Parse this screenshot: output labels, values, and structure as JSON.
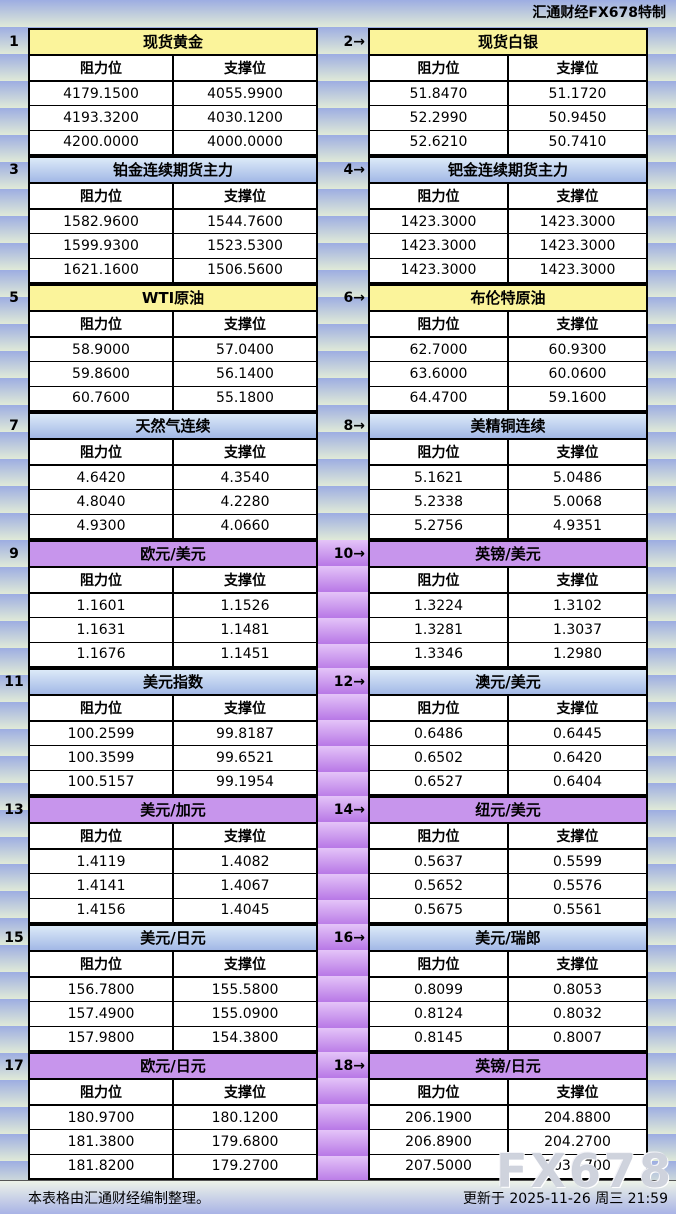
{
  "header": {
    "credit": "汇通财经FX678特制"
  },
  "table": {
    "labels": {
      "resistance": "阻力位",
      "support": "支撑位"
    },
    "section_rows": [
      {
        "theme": "yellow",
        "mid_theme": "plain",
        "left": {
          "num": "1",
          "title": "现货黄金",
          "rows": [
            [
              "4179.1500",
              "4055.9900"
            ],
            [
              "4193.3200",
              "4030.1200"
            ],
            [
              "4200.0000",
              "4000.0000"
            ]
          ]
        },
        "right": {
          "num": "2→",
          "title": "现货白银",
          "rows": [
            [
              "51.8470",
              "51.1720"
            ],
            [
              "52.2990",
              "50.9450"
            ],
            [
              "52.6210",
              "50.7410"
            ]
          ]
        }
      },
      {
        "theme": "blue",
        "mid_theme": "plain",
        "left": {
          "num": "3",
          "title": "铂金连续期货主力",
          "rows": [
            [
              "1582.9600",
              "1544.7600"
            ],
            [
              "1599.9300",
              "1523.5300"
            ],
            [
              "1621.1600",
              "1506.5600"
            ]
          ]
        },
        "right": {
          "num": "4→",
          "title": "钯金连续期货主力",
          "rows": [
            [
              "1423.3000",
              "1423.3000"
            ],
            [
              "1423.3000",
              "1423.3000"
            ],
            [
              "1423.3000",
              "1423.3000"
            ]
          ]
        }
      },
      {
        "theme": "yellow",
        "mid_theme": "plain",
        "left": {
          "num": "5",
          "title": "WTI原油",
          "rows": [
            [
              "58.9000",
              "57.0400"
            ],
            [
              "59.8600",
              "56.1400"
            ],
            [
              "60.7600",
              "55.1800"
            ]
          ]
        },
        "right": {
          "num": "6→",
          "title": "布伦特原油",
          "rows": [
            [
              "62.7000",
              "60.9300"
            ],
            [
              "63.6000",
              "60.0600"
            ],
            [
              "64.4700",
              "59.1600"
            ]
          ]
        }
      },
      {
        "theme": "blue",
        "mid_theme": "plain",
        "left": {
          "num": "7",
          "title": "天然气连续",
          "rows": [
            [
              "4.6420",
              "4.3540"
            ],
            [
              "4.8040",
              "4.2280"
            ],
            [
              "4.9300",
              "4.0660"
            ]
          ]
        },
        "right": {
          "num": "8→",
          "title": "美精铜连续",
          "rows": [
            [
              "5.1621",
              "5.0486"
            ],
            [
              "5.2338",
              "5.0068"
            ],
            [
              "5.2756",
              "4.9351"
            ]
          ]
        }
      },
      {
        "theme": "purple",
        "mid_theme": "purple",
        "left": {
          "num": "9",
          "title": "欧元/美元",
          "rows": [
            [
              "1.1601",
              "1.1526"
            ],
            [
              "1.1631",
              "1.1481"
            ],
            [
              "1.1676",
              "1.1451"
            ]
          ]
        },
        "right": {
          "num": "10→",
          "title": "英镑/美元",
          "rows": [
            [
              "1.3224",
              "1.3102"
            ],
            [
              "1.3281",
              "1.3037"
            ],
            [
              "1.3346",
              "1.2980"
            ]
          ]
        }
      },
      {
        "theme": "blue",
        "mid_theme": "purple",
        "left": {
          "num": "11",
          "title": "美元指数",
          "rows": [
            [
              "100.2599",
              "99.8187"
            ],
            [
              "100.3599",
              "99.6521"
            ],
            [
              "100.5157",
              "99.1954"
            ]
          ]
        },
        "right": {
          "num": "12→",
          "title": "澳元/美元",
          "rows": [
            [
              "0.6486",
              "0.6445"
            ],
            [
              "0.6502",
              "0.6420"
            ],
            [
              "0.6527",
              "0.6404"
            ]
          ]
        }
      },
      {
        "theme": "purple",
        "mid_theme": "purple",
        "left": {
          "num": "13",
          "title": "美元/加元",
          "rows": [
            [
              "1.4119",
              "1.4082"
            ],
            [
              "1.4141",
              "1.4067"
            ],
            [
              "1.4156",
              "1.4045"
            ]
          ]
        },
        "right": {
          "num": "14→",
          "title": "纽元/美元",
          "rows": [
            [
              "0.5637",
              "0.5599"
            ],
            [
              "0.5652",
              "0.5576"
            ],
            [
              "0.5675",
              "0.5561"
            ]
          ]
        }
      },
      {
        "theme": "blue",
        "mid_theme": "purple",
        "left": {
          "num": "15",
          "title": "美元/日元",
          "rows": [
            [
              "156.7800",
              "155.5800"
            ],
            [
              "157.4900",
              "155.0900"
            ],
            [
              "157.9800",
              "154.3800"
            ]
          ]
        },
        "right": {
          "num": "16→",
          "title": "美元/瑞郎",
          "rows": [
            [
              "0.8099",
              "0.8053"
            ],
            [
              "0.8124",
              "0.8032"
            ],
            [
              "0.8145",
              "0.8007"
            ]
          ]
        }
      },
      {
        "theme": "purple",
        "mid_theme": "purple",
        "left": {
          "num": "17",
          "title": "欧元/日元",
          "rows": [
            [
              "180.9700",
              "180.1200"
            ],
            [
              "181.3800",
              "179.6800"
            ],
            [
              "181.8200",
              "179.2700"
            ]
          ]
        },
        "right": {
          "num": "18→",
          "title": "英镑/日元",
          "rows": [
            [
              "206.1900",
              "204.8800"
            ],
            [
              "206.8900",
              "204.2700"
            ],
            [
              "207.5000",
              "203.5700"
            ]
          ]
        }
      }
    ]
  },
  "footer": {
    "note": "本表格由汇通财经编制整理。",
    "updated": "更新于 2025-11-26 周三 21:59"
  },
  "watermark": "FX678",
  "colors": {
    "title_yellow": "#FBF49B",
    "title_blue_top": "#DCEAF8",
    "title_blue_bottom": "#A2B8E6",
    "title_purple": "#C795EC",
    "bg_band_blue": "#9DADE2",
    "bg_band_green": "#E0EAD8",
    "mid_purple_light": "#E4C4F8",
    "mid_purple_dark": "#B878E6",
    "cell_bg": "#FFFFFF",
    "border": "#000000"
  }
}
